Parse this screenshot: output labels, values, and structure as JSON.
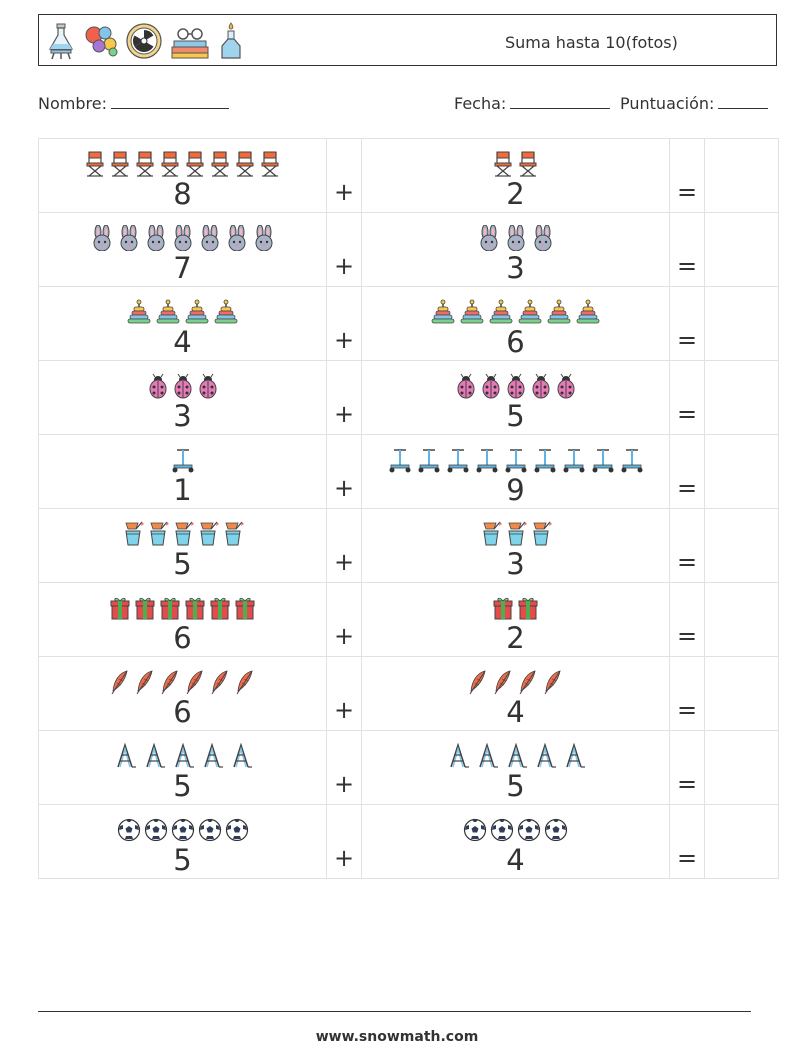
{
  "header": {
    "title": "Suma hasta 10(fotos)",
    "icons": [
      "flask-icon",
      "balloons-icon",
      "radiation-icon",
      "books-glasses-icon",
      "bottle-icon"
    ]
  },
  "info": {
    "name_label": "Nombre:",
    "date_label": "Fecha:",
    "score_label": "Puntuación:"
  },
  "problems": [
    {
      "a": 8,
      "b": 2,
      "icon": "director-chair-icon",
      "plus": "+",
      "equals": "="
    },
    {
      "a": 7,
      "b": 3,
      "icon": "bunny-icon",
      "plus": "+",
      "equals": "="
    },
    {
      "a": 4,
      "b": 6,
      "icon": "ring-stacker-icon",
      "plus": "+",
      "equals": "="
    },
    {
      "a": 3,
      "b": 5,
      "icon": "ladybug-icon",
      "plus": "+",
      "equals": "="
    },
    {
      "a": 1,
      "b": 9,
      "icon": "scooter-icon",
      "plus": "+",
      "equals": "="
    },
    {
      "a": 5,
      "b": 3,
      "icon": "sand-bucket-icon",
      "plus": "+",
      "equals": "="
    },
    {
      "a": 6,
      "b": 2,
      "icon": "gift-icon",
      "plus": "+",
      "equals": "="
    },
    {
      "a": 6,
      "b": 4,
      "icon": "feather-icon",
      "plus": "+",
      "equals": "="
    },
    {
      "a": 5,
      "b": 5,
      "icon": "stepladder-icon",
      "plus": "+",
      "equals": "="
    },
    {
      "a": 5,
      "b": 4,
      "icon": "soccer-ball-icon",
      "plus": "+",
      "equals": "="
    }
  ],
  "footer": {
    "website": "www.snowmath.com"
  }
}
